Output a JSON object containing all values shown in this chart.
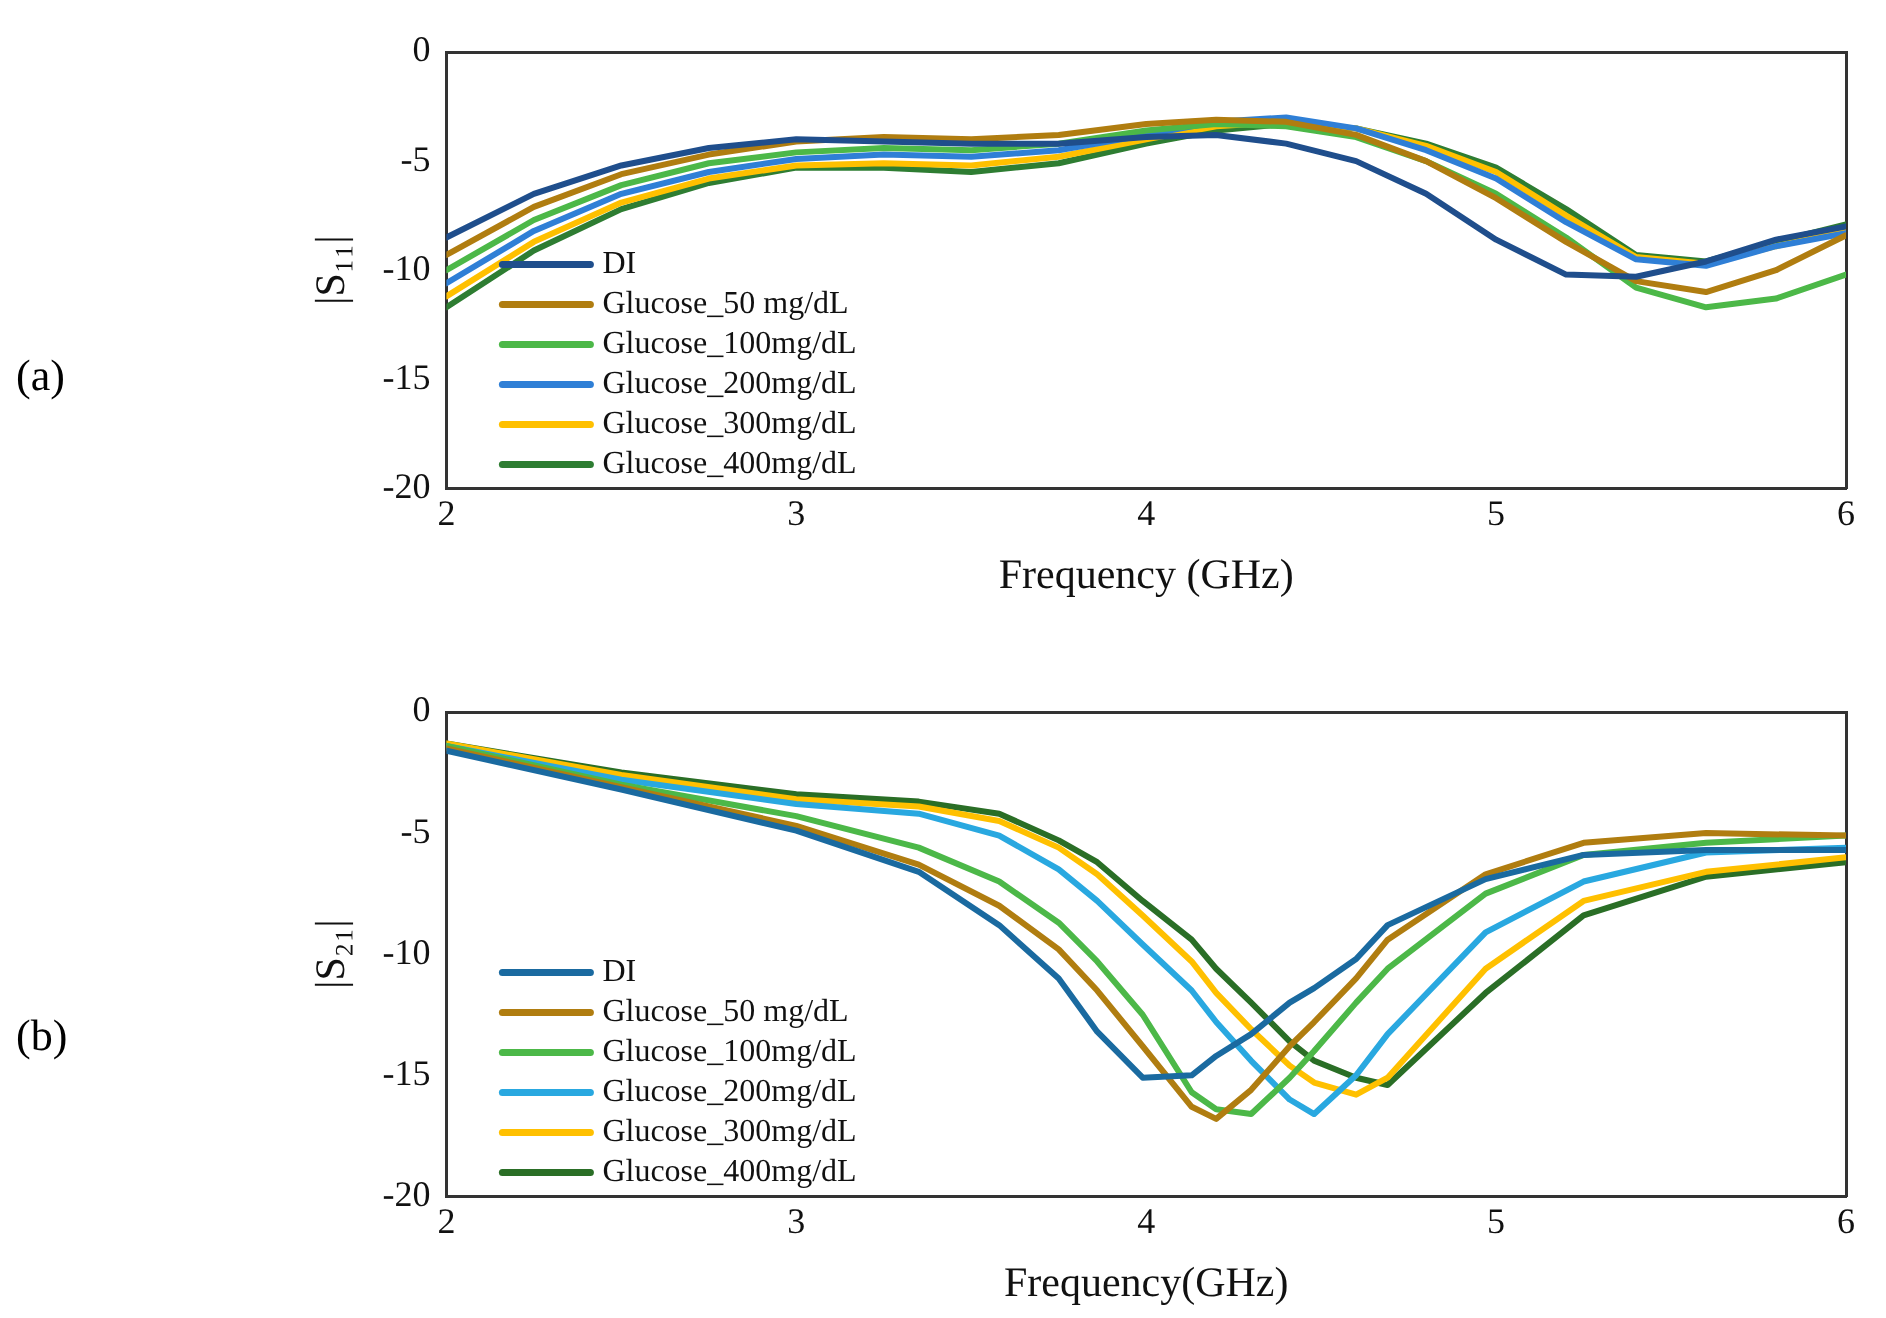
{
  "chart_data": [
    {
      "type": "line",
      "xlabel": "Frequency (GHz)",
      "ylabel": "|S₁₁|",
      "annotations": [
        "(a)"
      ],
      "xlim": [
        2,
        6
      ],
      "xticks": [
        2,
        3,
        4,
        5,
        6
      ],
      "ylim": [
        -20,
        0
      ],
      "yticks": [
        -20,
        -15,
        -10,
        -5,
        0
      ],
      "grid": false,
      "legend": "bottom left",
      "marker": "none",
      "line_style": "solid",
      "x": [
        2,
        2.25,
        2.5,
        2.75,
        3,
        3.25,
        3.5,
        3.75,
        4,
        4.2,
        4.4,
        4.6,
        4.8,
        5,
        5.2,
        5.4,
        5.6,
        5.8,
        6
      ],
      "series": [
        {
          "name": "DI",
          "color": "#1f4e8c",
          "values": [
            -8.5,
            -6.5,
            -5.2,
            -4.4,
            -4.0,
            -4.1,
            -4.2,
            -4.2,
            -3.9,
            -3.8,
            -4.2,
            -5.0,
            -6.5,
            -8.6,
            -10.2,
            -10.3,
            -9.6,
            -8.6,
            -8.0
          ]
        },
        {
          "name": "Glucose_50 mg/dL",
          "color": "#b07d10",
          "values": [
            -9.3,
            -7.1,
            -5.6,
            -4.7,
            -4.1,
            -3.9,
            -4.0,
            -3.8,
            -3.3,
            -3.1,
            -3.2,
            -3.8,
            -5.0,
            -6.7,
            -8.7,
            -10.5,
            -11.0,
            -10.0,
            -8.4
          ]
        },
        {
          "name": "Glucose_100mg/dL",
          "color": "#4cb848",
          "values": [
            -10.0,
            -7.7,
            -6.1,
            -5.1,
            -4.6,
            -4.4,
            -4.5,
            -4.2,
            -3.6,
            -3.3,
            -3.4,
            -3.9,
            -5.0,
            -6.5,
            -8.5,
            -10.8,
            -11.7,
            -11.3,
            -10.2
          ]
        },
        {
          "name": "Glucose_200mg/dL",
          "color": "#2f7fd6",
          "values": [
            -10.6,
            -8.2,
            -6.5,
            -5.5,
            -4.9,
            -4.7,
            -4.8,
            -4.5,
            -3.8,
            -3.2,
            -3.0,
            -3.5,
            -4.5,
            -5.8,
            -7.8,
            -9.5,
            -9.8,
            -8.9,
            -8.3
          ]
        },
        {
          "name": "Glucose_300mg/dL",
          "color": "#ffc000",
          "values": [
            -11.2,
            -8.7,
            -6.9,
            -5.8,
            -5.2,
            -5.1,
            -5.2,
            -4.8,
            -4.0,
            -3.4,
            -3.2,
            -3.5,
            -4.3,
            -5.5,
            -7.5,
            -9.4,
            -9.7,
            -8.9,
            -8.2
          ]
        },
        {
          "name": "Glucose_400mg/dL",
          "color": "#2e7d32",
          "values": [
            -11.7,
            -9.1,
            -7.2,
            -6.0,
            -5.3,
            -5.3,
            -5.5,
            -5.1,
            -4.2,
            -3.6,
            -3.3,
            -3.5,
            -4.2,
            -5.3,
            -7.2,
            -9.3,
            -9.6,
            -8.7,
            -7.9
          ]
        }
      ]
    },
    {
      "type": "line",
      "xlabel": "Frequency(GHz)",
      "ylabel": "|S₂₁|",
      "annotations": [
        "(b)"
      ],
      "xlim": [
        2,
        6
      ],
      "xticks": [
        2,
        3,
        4,
        5,
        6
      ],
      "ylim": [
        -20,
        0
      ],
      "yticks": [
        -20,
        -15,
        -10,
        -5,
        0
      ],
      "grid": false,
      "legend": "bottom left",
      "marker": "none",
      "line_style": "solid",
      "x": [
        2,
        2.5,
        3,
        3.35,
        3.58,
        3.75,
        3.86,
        3.99,
        4.13,
        4.2,
        4.3,
        4.41,
        4.48,
        4.6,
        4.69,
        4.97,
        5.25,
        5.6,
        6
      ],
      "series": [
        {
          "name": "DI",
          "color": "#1a6aa0",
          "values": [
            -1.6,
            -3.2,
            -4.9,
            -6.6,
            -8.8,
            -11.0,
            -13.2,
            -15.1,
            -15.0,
            -14.2,
            -13.3,
            -12.0,
            -11.4,
            -10.2,
            -8.8,
            -6.9,
            -5.9,
            -5.7,
            -5.7
          ]
        },
        {
          "name": "Glucose_50 mg/dL",
          "color": "#b07d10",
          "values": [
            -1.5,
            -3.1,
            -4.7,
            -6.3,
            -8.0,
            -9.8,
            -11.5,
            -13.8,
            -16.3,
            -16.8,
            -15.6,
            -13.8,
            -12.8,
            -11.0,
            -9.4,
            -6.7,
            -5.4,
            -5.0,
            -5.1
          ]
        },
        {
          "name": "Glucose_100mg/dL",
          "color": "#4cb848",
          "values": [
            -1.4,
            -3.0,
            -4.3,
            -5.6,
            -7.0,
            -8.7,
            -10.3,
            -12.5,
            -15.7,
            -16.4,
            -16.6,
            -15.1,
            -14.0,
            -12.0,
            -10.6,
            -7.5,
            -5.9,
            -5.4,
            -5.1
          ]
        },
        {
          "name": "Glucose_200mg/dL",
          "color": "#29a8e0",
          "values": [
            -1.4,
            -2.8,
            -3.8,
            -4.2,
            -5.1,
            -6.5,
            -7.8,
            -9.6,
            -11.5,
            -12.8,
            -14.4,
            -16.0,
            -16.6,
            -15.0,
            -13.3,
            -9.1,
            -7.0,
            -5.8,
            -5.6
          ]
        },
        {
          "name": "Glucose_300mg/dL",
          "color": "#ffc000",
          "values": [
            -1.3,
            -2.6,
            -3.6,
            -3.9,
            -4.5,
            -5.6,
            -6.7,
            -8.4,
            -10.3,
            -11.6,
            -13.1,
            -14.6,
            -15.3,
            -15.8,
            -15.1,
            -10.6,
            -7.8,
            -6.6,
            -6.0
          ]
        },
        {
          "name": "Glucose_400mg/dL",
          "color": "#2a6e26",
          "values": [
            -1.3,
            -2.5,
            -3.4,
            -3.7,
            -4.2,
            -5.3,
            -6.2,
            -7.8,
            -9.4,
            -10.6,
            -12.0,
            -13.6,
            -14.4,
            -15.1,
            -15.4,
            -11.6,
            -8.4,
            -6.8,
            -6.2
          ]
        }
      ]
    }
  ]
}
